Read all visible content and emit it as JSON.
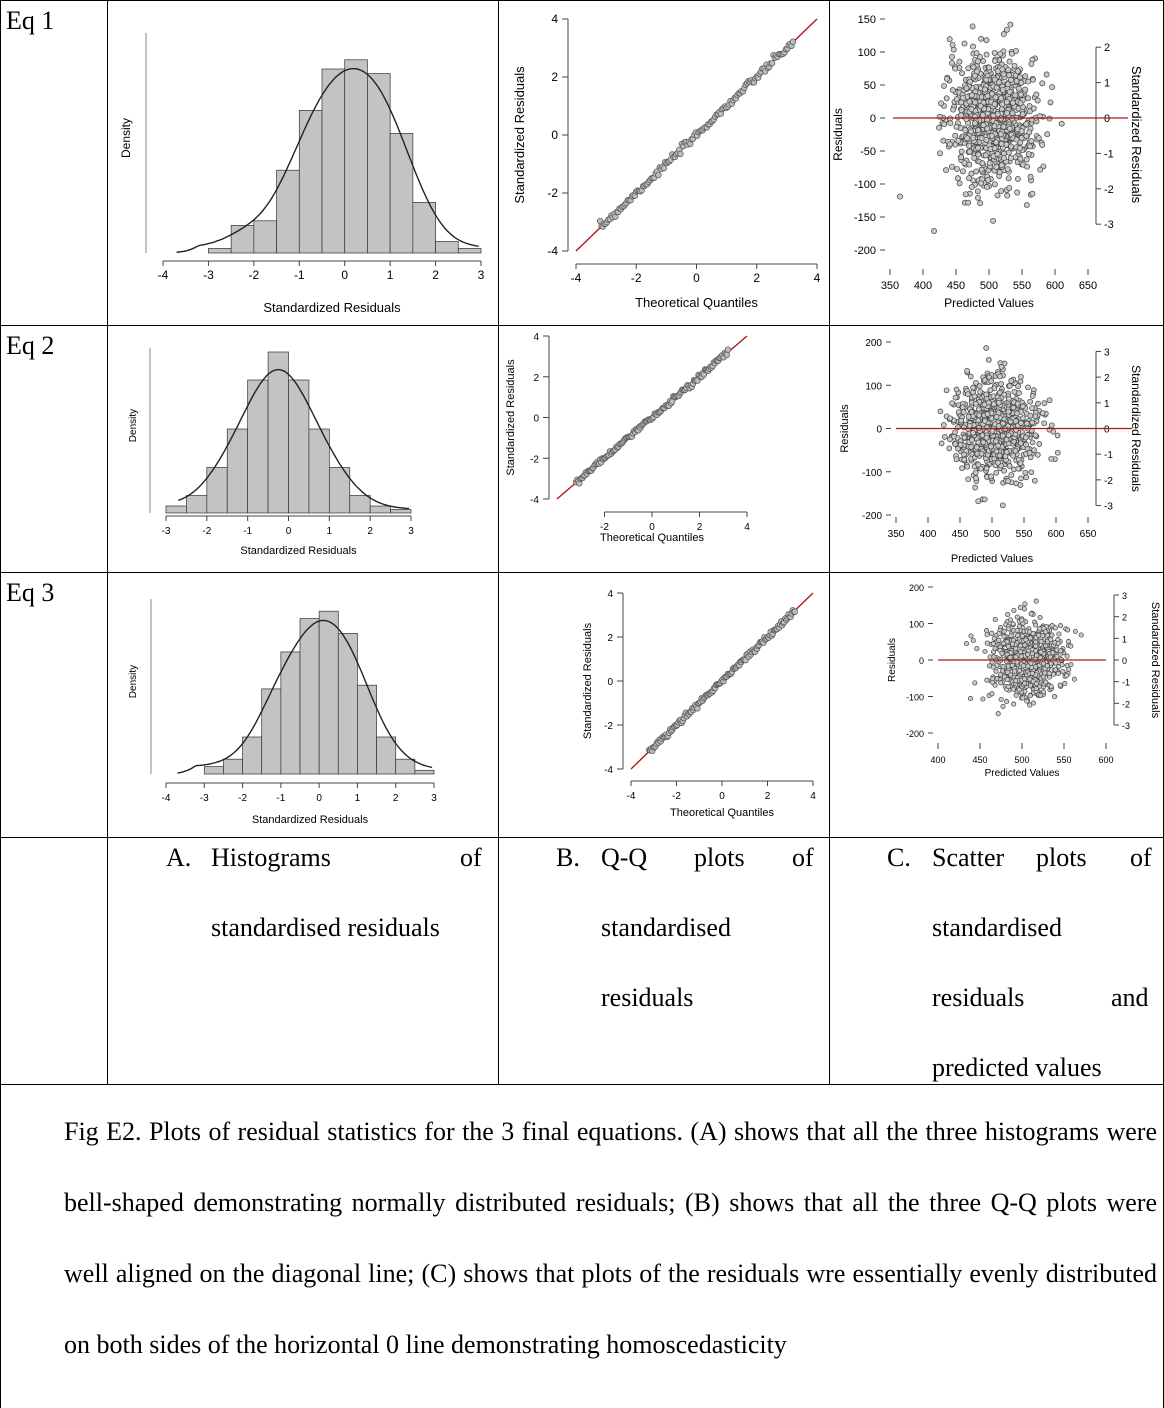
{
  "rows": [
    {
      "label": "Eq 1"
    },
    {
      "label": "Eq 2"
    },
    {
      "label": "Eq 3"
    }
  ],
  "captions": {
    "A": {
      "letter": "A.",
      "lines": [
        "Histograms",
        "of",
        "standardised residuals"
      ]
    },
    "B": {
      "letter": "B.",
      "lines": [
        "Q-Q",
        "plots",
        "of",
        "standardised",
        "residuals"
      ]
    },
    "C": {
      "letter": "C.",
      "lines": [
        "Scatter",
        "plots",
        "of",
        "standardised",
        "residuals",
        "and",
        "predicted values"
      ]
    }
  },
  "figure_caption": "Fig E2. Plots of residual statistics for the 3 final equations. (A) shows that all the three histograms were bell-shaped demonstrating normally distributed residuals; (B) shows that all the three Q-Q plots were well aligned on the diagonal line; (C) shows that plots of the residuals wre essentially evenly distributed on both sides of the horizontal 0 line demonstrating homoscedasticity",
  "colors": {
    "bars": "#c3c3c3",
    "refline": "#b01818",
    "points": "#9a9a9a"
  },
  "chart_data": [
    {
      "type": "bar",
      "panel": "Eq 1 histogram",
      "xlabel": "Standardized Residuals",
      "ylabel": "Density",
      "xticks": [
        -4,
        -3,
        -2,
        -1,
        0,
        1,
        2,
        3
      ],
      "bin_width": 0.5,
      "categories": [
        -3,
        -2.5,
        -2,
        -1.5,
        -1,
        -0.5,
        0,
        0.5,
        1,
        1.5,
        2,
        2.5
      ],
      "values": [
        0.02,
        0.12,
        0.14,
        0.36,
        0.62,
        0.8,
        0.84,
        0.78,
        0.52,
        0.22,
        0.05,
        0.02
      ]
    },
    {
      "type": "scatter",
      "panel": "Eq 1 Q-Q",
      "xlabel": "Theoretical Quantiles",
      "ylabel": "Standardized Residuals",
      "xticks": [
        -4,
        -2,
        0,
        2,
        4
      ],
      "yticks": [
        -4,
        -2,
        0,
        2,
        4
      ],
      "xlim": [
        -4,
        4
      ],
      "ylim": [
        -4,
        4
      ],
      "reference_line": "y = x"
    },
    {
      "type": "scatter",
      "panel": "Eq 1 residuals vs predicted",
      "xlabel": "Predicted Values",
      "ylabel": "Residuals",
      "y2label": "Standardized Residuals",
      "xticks": [
        350,
        400,
        450,
        500,
        550,
        600,
        650
      ],
      "yticks": [
        150,
        100,
        50,
        0,
        -50,
        -100,
        -150,
        -200
      ],
      "y2ticks": [
        2,
        1,
        0,
        -1,
        -2,
        -3
      ],
      "xlim": [
        350,
        650
      ],
      "ylim": [
        -200,
        150
      ],
      "reference_line": "y = 0"
    },
    {
      "type": "bar",
      "panel": "Eq 2 histogram",
      "xlabel": "Standardized Residuals",
      "ylabel": "Density",
      "xticks": [
        -3,
        -2,
        -1,
        0,
        1,
        2,
        3
      ],
      "bin_width": 0.5,
      "categories": [
        -3,
        -2.5,
        -2,
        -1.5,
        -1,
        -0.5,
        0,
        0.5,
        1,
        1.5,
        2,
        2.5
      ],
      "values": [
        0.04,
        0.1,
        0.26,
        0.48,
        0.76,
        0.92,
        0.76,
        0.48,
        0.26,
        0.1,
        0.04,
        0.02
      ]
    },
    {
      "type": "scatter",
      "panel": "Eq 2 Q-Q",
      "xlabel": "Theoretical Quantiles",
      "ylabel": "Standardized Residuals",
      "xticks": [
        -2,
        0,
        2,
        4
      ],
      "yticks": [
        -4,
        -2,
        0,
        2,
        4
      ],
      "xlim": [
        -4,
        4
      ],
      "ylim": [
        -4,
        4
      ],
      "reference_line": "y = x"
    },
    {
      "type": "scatter",
      "panel": "Eq 2 residuals vs predicted",
      "xlabel": "Predicted Values",
      "ylabel": "Residuals",
      "y2label": "Standardized Residuals",
      "xticks": [
        350,
        400,
        450,
        500,
        550,
        600,
        650
      ],
      "yticks": [
        200,
        100,
        0,
        -100,
        -200
      ],
      "y2ticks": [
        3,
        2,
        1,
        0,
        -1,
        -2,
        -3
      ],
      "xlim": [
        350,
        650
      ],
      "ylim": [
        -200,
        200
      ],
      "reference_line": "y = 0"
    },
    {
      "type": "bar",
      "panel": "Eq 3 histogram",
      "xlabel": "Standardized Residuals",
      "ylabel": "Density",
      "xticks": [
        -4,
        -3,
        -2,
        -1,
        0,
        1,
        2,
        3
      ],
      "bin_width": 0.5,
      "categories": [
        -3,
        -2.5,
        -2,
        -1.5,
        -1,
        -0.5,
        0,
        0.5,
        1,
        1.5,
        2,
        2.5
      ],
      "values": [
        0.04,
        0.08,
        0.2,
        0.46,
        0.66,
        0.84,
        0.88,
        0.76,
        0.48,
        0.2,
        0.08,
        0.02
      ]
    },
    {
      "type": "scatter",
      "panel": "Eq 3 Q-Q",
      "xlabel": "Theoretical Quantiles",
      "ylabel": "Standardized Residuals",
      "xticks": [
        -4,
        -2,
        0,
        2,
        4
      ],
      "yticks": [
        -4,
        -2,
        0,
        2,
        4
      ],
      "xlim": [
        -4,
        4
      ],
      "ylim": [
        -4,
        4
      ],
      "reference_line": "y = x"
    },
    {
      "type": "scatter",
      "panel": "Eq 3 residuals vs predicted",
      "xlabel": "Predicted Values",
      "ylabel": "Residuals",
      "y2label": "Standardized Residuals",
      "xticks": [
        400,
        450,
        500,
        550,
        600
      ],
      "yticks": [
        200,
        100,
        0,
        -100,
        -200
      ],
      "y2ticks": [
        3,
        2,
        1,
        0,
        -1,
        -2,
        -3
      ],
      "xlim": [
        400,
        600
      ],
      "ylim": [
        -200,
        200
      ],
      "reference_line": "y = 0"
    }
  ]
}
